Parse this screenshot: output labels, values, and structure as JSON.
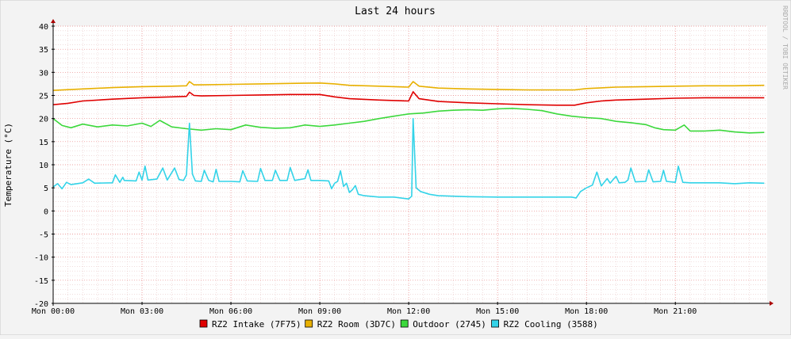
{
  "chart_data": {
    "type": "line",
    "title": "Last 24 hours",
    "ylabel": "Temperature (°C)",
    "watermark": "RRDTOOL / TOBI OETIKER",
    "ylim": [
      -20,
      40
    ],
    "yticks": [
      40,
      35,
      30,
      25,
      20,
      15,
      10,
      5,
      0,
      -5,
      -10,
      -15,
      -20
    ],
    "xlim": [
      0,
      24.1
    ],
    "xticks": [
      {
        "value": 0,
        "label": "Mon 00:00"
      },
      {
        "value": 3,
        "label": "Mon 03:00"
      },
      {
        "value": 6,
        "label": "Mon 06:00"
      },
      {
        "value": 9,
        "label": "Mon 09:00"
      },
      {
        "value": 12,
        "label": "Mon 12:00"
      },
      {
        "value": 15,
        "label": "Mon 15:00"
      },
      {
        "value": 18,
        "label": "Mon 18:00"
      },
      {
        "value": 21,
        "label": "Mon 21:00"
      }
    ],
    "grid": true,
    "legend_position": "bottom",
    "series": [
      {
        "name": "RZ2 Intake (7F75)",
        "color": "#e00000",
        "points": [
          [
            0,
            23.0
          ],
          [
            0.5,
            23.3
          ],
          [
            1,
            23.8
          ],
          [
            2,
            24.2
          ],
          [
            3,
            24.5
          ],
          [
            4,
            24.7
          ],
          [
            4.5,
            24.8
          ],
          [
            4.6,
            25.7
          ],
          [
            4.75,
            25.0
          ],
          [
            5,
            24.9
          ],
          [
            6,
            25.0
          ],
          [
            7,
            25.1
          ],
          [
            8,
            25.2
          ],
          [
            9,
            25.2
          ],
          [
            9.5,
            24.7
          ],
          [
            10,
            24.3
          ],
          [
            11,
            24.0
          ],
          [
            12,
            23.8
          ],
          [
            12.15,
            25.8
          ],
          [
            12.35,
            24.3
          ],
          [
            13,
            23.7
          ],
          [
            14,
            23.4
          ],
          [
            15,
            23.2
          ],
          [
            16,
            23.0
          ],
          [
            17,
            22.9
          ],
          [
            17.6,
            22.9
          ],
          [
            18,
            23.4
          ],
          [
            18.5,
            23.8
          ],
          [
            19,
            24.0
          ],
          [
            20,
            24.2
          ],
          [
            21,
            24.4
          ],
          [
            22,
            24.5
          ],
          [
            23,
            24.5
          ],
          [
            24,
            24.5
          ]
        ]
      },
      {
        "name": "RZ2 Room (3D7C)",
        "color": "#e8b000",
        "points": [
          [
            0,
            26.1
          ],
          [
            1,
            26.4
          ],
          [
            2,
            26.7
          ],
          [
            3,
            26.9
          ],
          [
            4,
            27.0
          ],
          [
            4.5,
            27.1
          ],
          [
            4.6,
            28.0
          ],
          [
            4.75,
            27.3
          ],
          [
            5,
            27.3
          ],
          [
            6,
            27.4
          ],
          [
            7,
            27.5
          ],
          [
            8,
            27.6
          ],
          [
            9,
            27.7
          ],
          [
            9.5,
            27.5
          ],
          [
            10,
            27.2
          ],
          [
            11,
            27.0
          ],
          [
            12,
            26.8
          ],
          [
            12.15,
            28.0
          ],
          [
            12.35,
            27.0
          ],
          [
            13,
            26.6
          ],
          [
            14,
            26.4
          ],
          [
            15,
            26.3
          ],
          [
            16,
            26.2
          ],
          [
            17,
            26.2
          ],
          [
            17.6,
            26.2
          ],
          [
            18,
            26.5
          ],
          [
            19,
            26.8
          ],
          [
            20,
            26.9
          ],
          [
            21,
            27.0
          ],
          [
            22,
            27.1
          ],
          [
            23,
            27.1
          ],
          [
            24,
            27.2
          ]
        ]
      },
      {
        "name": "Outdoor (2745)",
        "color": "#3cd83c",
        "points": [
          [
            0,
            20.0
          ],
          [
            0.3,
            18.5
          ],
          [
            0.6,
            18.0
          ],
          [
            1,
            18.8
          ],
          [
            1.5,
            18.2
          ],
          [
            2,
            18.6
          ],
          [
            2.5,
            18.4
          ],
          [
            3,
            19.0
          ],
          [
            3.3,
            18.3
          ],
          [
            3.6,
            19.6
          ],
          [
            4,
            18.2
          ],
          [
            4.5,
            17.8
          ],
          [
            5,
            17.5
          ],
          [
            5.5,
            17.8
          ],
          [
            6,
            17.6
          ],
          [
            6.5,
            18.6
          ],
          [
            7,
            18.1
          ],
          [
            7.5,
            17.9
          ],
          [
            8,
            18.0
          ],
          [
            8.5,
            18.6
          ],
          [
            9,
            18.3
          ],
          [
            9.5,
            18.6
          ],
          [
            10,
            19.0
          ],
          [
            10.5,
            19.4
          ],
          [
            11,
            20.0
          ],
          [
            11.5,
            20.5
          ],
          [
            12,
            21.0
          ],
          [
            12.5,
            21.2
          ],
          [
            13,
            21.6
          ],
          [
            13.5,
            21.8
          ],
          [
            14,
            21.9
          ],
          [
            14.5,
            21.8
          ],
          [
            15,
            22.1
          ],
          [
            15.5,
            22.2
          ],
          [
            16,
            22.0
          ],
          [
            16.5,
            21.7
          ],
          [
            17,
            21.0
          ],
          [
            17.5,
            20.5
          ],
          [
            18,
            20.2
          ],
          [
            18.5,
            20.0
          ],
          [
            19,
            19.4
          ],
          [
            19.5,
            19.1
          ],
          [
            20,
            18.7
          ],
          [
            20.3,
            18.0
          ],
          [
            20.6,
            17.6
          ],
          [
            21,
            17.5
          ],
          [
            21.3,
            18.6
          ],
          [
            21.5,
            17.3
          ],
          [
            22,
            17.3
          ],
          [
            22.5,
            17.5
          ],
          [
            23,
            17.1
          ],
          [
            23.5,
            16.9
          ],
          [
            24,
            17.0
          ]
        ]
      },
      {
        "name": "RZ2 Cooling (3588)",
        "color": "#33d3e8",
        "points": [
          [
            0,
            5.2
          ],
          [
            0.15,
            5.9
          ],
          [
            0.3,
            4.8
          ],
          [
            0.45,
            6.2
          ],
          [
            0.6,
            5.7
          ],
          [
            1,
            6.1
          ],
          [
            1.2,
            6.9
          ],
          [
            1.4,
            6.0
          ],
          [
            2,
            6.1
          ],
          [
            2.1,
            7.8
          ],
          [
            2.25,
            6.2
          ],
          [
            2.35,
            7.3
          ],
          [
            2.4,
            6.6
          ],
          [
            2.8,
            6.5
          ],
          [
            2.9,
            8.4
          ],
          [
            3.0,
            6.7
          ],
          [
            3.1,
            9.7
          ],
          [
            3.2,
            6.7
          ],
          [
            3.5,
            6.9
          ],
          [
            3.7,
            9.3
          ],
          [
            3.85,
            6.7
          ],
          [
            4.1,
            9.3
          ],
          [
            4.25,
            6.8
          ],
          [
            4.4,
            6.6
          ],
          [
            4.5,
            7.8
          ],
          [
            4.6,
            19.0
          ],
          [
            4.7,
            8.0
          ],
          [
            4.8,
            6.5
          ],
          [
            5,
            6.4
          ],
          [
            5.1,
            8.8
          ],
          [
            5.25,
            6.6
          ],
          [
            5.4,
            6.3
          ],
          [
            5.5,
            9.0
          ],
          [
            5.6,
            6.4
          ],
          [
            6,
            6.4
          ],
          [
            6.3,
            6.3
          ],
          [
            6.4,
            8.7
          ],
          [
            6.55,
            6.5
          ],
          [
            6.9,
            6.4
          ],
          [
            7,
            9.2
          ],
          [
            7.15,
            6.6
          ],
          [
            7.4,
            6.6
          ],
          [
            7.5,
            8.8
          ],
          [
            7.65,
            6.6
          ],
          [
            7.9,
            6.6
          ],
          [
            8,
            9.4
          ],
          [
            8.15,
            6.6
          ],
          [
            8.5,
            7.0
          ],
          [
            8.6,
            8.9
          ],
          [
            8.7,
            6.6
          ],
          [
            9,
            6.6
          ],
          [
            9.3,
            6.5
          ],
          [
            9.4,
            4.8
          ],
          [
            9.5,
            6.0
          ],
          [
            9.6,
            6.4
          ],
          [
            9.7,
            8.7
          ],
          [
            9.8,
            5.3
          ],
          [
            9.9,
            6.0
          ],
          [
            10,
            4.0
          ],
          [
            10.1,
            4.6
          ],
          [
            10.2,
            5.5
          ],
          [
            10.3,
            3.6
          ],
          [
            10.5,
            3.3
          ],
          [
            11,
            3.0
          ],
          [
            11.5,
            3.0
          ],
          [
            12,
            2.6
          ],
          [
            12.1,
            3.2
          ],
          [
            12.15,
            20.0
          ],
          [
            12.25,
            5.0
          ],
          [
            12.4,
            4.2
          ],
          [
            12.7,
            3.6
          ],
          [
            13,
            3.3
          ],
          [
            14,
            3.1
          ],
          [
            15,
            3.0
          ],
          [
            16,
            3.0
          ],
          [
            17,
            3.0
          ],
          [
            17.5,
            3.0
          ],
          [
            17.65,
            2.8
          ],
          [
            17.8,
            4.2
          ],
          [
            18,
            5.0
          ],
          [
            18.2,
            5.6
          ],
          [
            18.35,
            8.4
          ],
          [
            18.5,
            5.4
          ],
          [
            18.7,
            7.0
          ],
          [
            18.8,
            6.0
          ],
          [
            18.9,
            6.8
          ],
          [
            19,
            7.5
          ],
          [
            19.1,
            6.1
          ],
          [
            19.3,
            6.2
          ],
          [
            19.4,
            6.7
          ],
          [
            19.5,
            9.3
          ],
          [
            19.65,
            6.3
          ],
          [
            20,
            6.4
          ],
          [
            20.1,
            8.9
          ],
          [
            20.25,
            6.3
          ],
          [
            20.5,
            6.4
          ],
          [
            20.6,
            8.8
          ],
          [
            20.7,
            6.4
          ],
          [
            21,
            6.2
          ],
          [
            21.1,
            9.7
          ],
          [
            21.25,
            6.2
          ],
          [
            21.5,
            6.1
          ],
          [
            22,
            6.1
          ],
          [
            22.5,
            6.1
          ],
          [
            23,
            5.9
          ],
          [
            23.5,
            6.1
          ],
          [
            24,
            6.0
          ]
        ]
      }
    ]
  }
}
